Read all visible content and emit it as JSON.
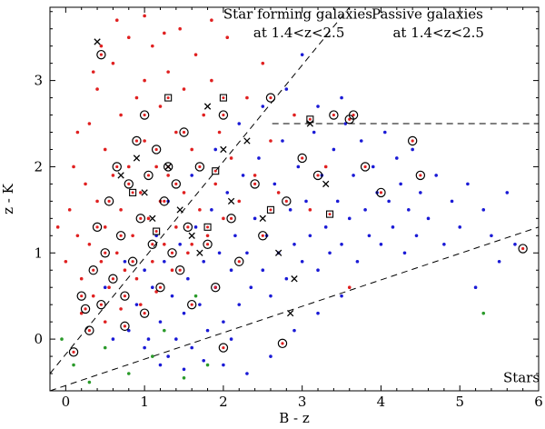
{
  "chart_data": {
    "type": "scatter",
    "title": "",
    "xlabel": "B - z",
    "ylabel": "z - K",
    "xlim": [
      -0.2,
      6.0
    ],
    "ylim": [
      -0.6,
      3.85
    ],
    "xticks": [
      0,
      1,
      2,
      3,
      4,
      5,
      6
    ],
    "yticks": [
      0,
      1,
      2,
      3
    ],
    "grid": false,
    "legend": "none",
    "annotations": [
      {
        "name": "sf-label-1",
        "text": "Star forming galaxies",
        "x": 2.0,
        "y": 3.72
      },
      {
        "name": "sf-label-2",
        "text": "at 1.4<z<2.5",
        "x": 2.38,
        "y": 3.5
      },
      {
        "name": "passive-label-1",
        "text": "Passive galaxies",
        "x": 3.88,
        "y": 3.72
      },
      {
        "name": "passive-label-2",
        "text": "at 1.4<z<2.5",
        "x": 4.15,
        "y": 3.5
      },
      {
        "name": "stars-label",
        "text": "Stars",
        "x": 5.55,
        "y": -0.5
      }
    ],
    "boundary_lines": [
      {
        "name": "sf-boundary",
        "x": [
          -0.2,
          3.6
        ],
        "y": [
          -0.4,
          3.85
        ],
        "style": "dashed"
      },
      {
        "name": "star-boundary",
        "x": [
          -0.2,
          6.0
        ],
        "y": [
          -0.6,
          1.3
        ],
        "style": "dashed"
      },
      {
        "name": "passive-boundary",
        "x": [
          2.62,
          6.0
        ],
        "y": [
          2.5,
          2.5
        ],
        "style": "dashed"
      }
    ],
    "series": [
      {
        "marker": "dot",
        "color": "#e02020",
        "points": [
          [
            -0.1,
            1.3
          ],
          [
            0.0,
            0.9
          ],
          [
            0.05,
            1.5
          ],
          [
            0.1,
            2.0
          ],
          [
            0.15,
            1.2
          ],
          [
            0.2,
            0.7
          ],
          [
            0.25,
            1.8
          ],
          [
            0.3,
            2.5
          ],
          [
            0.3,
            1.1
          ],
          [
            0.35,
            0.5
          ],
          [
            0.4,
            1.6
          ],
          [
            0.4,
            2.9
          ],
          [
            0.45,
            0.9
          ],
          [
            0.5,
            2.2
          ],
          [
            0.5,
            1.3
          ],
          [
            0.55,
            0.6
          ],
          [
            0.6,
            1.9
          ],
          [
            0.6,
            3.2
          ],
          [
            0.65,
            1.0
          ],
          [
            0.7,
            2.6
          ],
          [
            0.7,
            1.5
          ],
          [
            0.75,
            0.8
          ],
          [
            0.8,
            2.0
          ],
          [
            0.8,
            3.5
          ],
          [
            0.85,
            1.2
          ],
          [
            0.9,
            2.8
          ],
          [
            0.9,
            0.7
          ],
          [
            0.95,
            1.7
          ],
          [
            1.0,
            3.0
          ],
          [
            1.0,
            2.3
          ],
          [
            1.05,
            1.4
          ],
          [
            1.1,
            0.9
          ],
          [
            1.1,
            3.4
          ],
          [
            1.15,
            2.0
          ],
          [
            1.2,
            1.6
          ],
          [
            1.2,
            2.7
          ],
          [
            1.25,
            1.1
          ],
          [
            1.3,
            3.1
          ],
          [
            1.3,
            1.9
          ],
          [
            1.35,
            0.8
          ],
          [
            1.4,
            2.4
          ],
          [
            1.4,
            1.3
          ],
          [
            1.45,
            3.6
          ],
          [
            1.5,
            1.7
          ],
          [
            1.5,
            2.9
          ],
          [
            1.55,
            1.0
          ],
          [
            1.6,
            2.2
          ],
          [
            1.65,
            3.3
          ],
          [
            1.7,
            1.5
          ],
          [
            1.75,
            2.6
          ],
          [
            1.8,
            1.2
          ],
          [
            1.85,
            3.0
          ],
          [
            1.9,
            1.8
          ],
          [
            1.95,
            2.4
          ],
          [
            2.0,
            1.4
          ],
          [
            2.1,
            2.1
          ],
          [
            2.2,
            1.6
          ],
          [
            2.3,
            2.8
          ],
          [
            2.4,
            1.9
          ],
          [
            2.6,
            2.3
          ],
          [
            2.7,
            1.7
          ],
          [
            2.9,
            2.6
          ],
          [
            3.1,
            1.5
          ],
          [
            0.2,
            0.3
          ],
          [
            0.5,
            0.2
          ],
          [
            0.15,
            2.4
          ],
          [
            0.35,
            3.1
          ],
          [
            0.65,
            3.7
          ],
          [
            1.0,
            3.75
          ],
          [
            1.25,
            3.55
          ],
          [
            0.95,
            0.4
          ],
          [
            2.5,
            3.2
          ],
          [
            3.3,
            2.0
          ],
          [
            3.6,
            0.6
          ],
          [
            0.45,
            3.4
          ],
          [
            1.85,
            3.7
          ],
          [
            0.7,
            0.35
          ],
          [
            1.6,
            1.1
          ],
          [
            2.05,
            3.5
          ],
          [
            1.15,
            0.55
          ]
        ]
      },
      {
        "marker": "dot",
        "color": "#1a1ad6",
        "points": [
          [
            0.8,
            0.1
          ],
          [
            0.9,
            0.4
          ],
          [
            1.0,
            -0.1
          ],
          [
            1.1,
            0.6
          ],
          [
            1.2,
            0.2
          ],
          [
            1.25,
            0.9
          ],
          [
            1.3,
            -0.2
          ],
          [
            1.35,
            0.5
          ],
          [
            1.4,
            0.0
          ],
          [
            1.45,
            1.1
          ],
          [
            1.5,
            0.3
          ],
          [
            1.55,
            0.7
          ],
          [
            1.6,
            -0.1
          ],
          [
            1.65,
            1.3
          ],
          [
            1.7,
            0.4
          ],
          [
            1.75,
            0.9
          ],
          [
            1.8,
            0.1
          ],
          [
            1.85,
            1.5
          ],
          [
            1.9,
            0.6
          ],
          [
            1.95,
            1.0
          ],
          [
            2.0,
            0.2
          ],
          [
            2.05,
            1.7
          ],
          [
            2.1,
            0.8
          ],
          [
            2.15,
            1.2
          ],
          [
            2.2,
            0.4
          ],
          [
            2.25,
            1.9
          ],
          [
            2.3,
            1.0
          ],
          [
            2.35,
            0.6
          ],
          [
            2.4,
            1.4
          ],
          [
            2.45,
            2.1
          ],
          [
            2.5,
            0.8
          ],
          [
            2.55,
            1.2
          ],
          [
            2.6,
            0.5
          ],
          [
            2.65,
            1.8
          ],
          [
            2.7,
            1.0
          ],
          [
            2.75,
            2.3
          ],
          [
            2.8,
            0.7
          ],
          [
            2.85,
            1.5
          ],
          [
            2.9,
            1.1
          ],
          [
            2.95,
            2.0
          ],
          [
            3.0,
            0.9
          ],
          [
            3.05,
            1.6
          ],
          [
            3.1,
            1.2
          ],
          [
            3.15,
            2.4
          ],
          [
            3.2,
            0.8
          ],
          [
            3.25,
            1.9
          ],
          [
            3.3,
            1.3
          ],
          [
            3.35,
            1.0
          ],
          [
            3.4,
            2.2
          ],
          [
            3.45,
            1.6
          ],
          [
            3.5,
            1.1
          ],
          [
            3.55,
            2.5
          ],
          [
            3.6,
            1.4
          ],
          [
            3.65,
            1.9
          ],
          [
            3.7,
            0.9
          ],
          [
            3.75,
            2.3
          ],
          [
            3.8,
            1.5
          ],
          [
            3.85,
            1.2
          ],
          [
            3.9,
            2.0
          ],
          [
            3.95,
            1.7
          ],
          [
            4.0,
            1.1
          ],
          [
            4.05,
            2.4
          ],
          [
            4.1,
            1.6
          ],
          [
            4.15,
            1.3
          ],
          [
            4.2,
            2.1
          ],
          [
            4.25,
            1.8
          ],
          [
            4.3,
            1.0
          ],
          [
            4.35,
            1.5
          ],
          [
            4.4,
            2.2
          ],
          [
            4.45,
            1.2
          ],
          [
            4.5,
            1.7
          ],
          [
            4.6,
            1.4
          ],
          [
            4.7,
            1.9
          ],
          [
            4.8,
            1.1
          ],
          [
            4.9,
            1.6
          ],
          [
            5.0,
            1.3
          ],
          [
            5.1,
            1.8
          ],
          [
            5.2,
            0.6
          ],
          [
            5.3,
            1.5
          ],
          [
            5.4,
            1.2
          ],
          [
            5.5,
            0.9
          ],
          [
            5.6,
            1.7
          ],
          [
            5.7,
            1.1
          ],
          [
            1.0,
            0.8
          ],
          [
            1.15,
            1.2
          ],
          [
            1.3,
            1.6
          ],
          [
            1.6,
            1.9
          ],
          [
            1.9,
            2.2
          ],
          [
            2.2,
            2.5
          ],
          [
            2.5,
            2.7
          ],
          [
            2.8,
            2.9
          ],
          [
            3.0,
            3.3
          ],
          [
            3.2,
            2.7
          ],
          [
            3.5,
            2.8
          ],
          [
            2.0,
            -0.3
          ],
          [
            2.3,
            -0.4
          ],
          [
            2.6,
            -0.2
          ],
          [
            2.9,
            0.1
          ],
          [
            3.2,
            0.3
          ],
          [
            3.5,
            0.5
          ],
          [
            0.6,
            0.0
          ],
          [
            0.5,
            0.6
          ],
          [
            0.75,
            0.9
          ],
          [
            1.05,
            0.0
          ],
          [
            1.2,
            -0.3
          ],
          [
            1.5,
            -0.35
          ],
          [
            1.75,
            -0.25
          ],
          [
            2.1,
            0.0
          ]
        ]
      },
      {
        "marker": "dot",
        "color": "#2a9a2a",
        "points": [
          [
            -0.05,
            0.0
          ],
          [
            0.1,
            -0.3
          ],
          [
            0.5,
            -0.1
          ],
          [
            0.8,
            -0.4
          ],
          [
            1.1,
            -0.2
          ],
          [
            1.5,
            -0.45
          ],
          [
            1.8,
            -0.3
          ],
          [
            1.65,
            0.5
          ],
          [
            1.25,
            0.1
          ],
          [
            5.3,
            0.3
          ],
          [
            0.3,
            -0.5
          ]
        ]
      },
      {
        "marker": "circle",
        "color": "#000000",
        "points": [
          [
            0.1,
            -0.15
          ],
          [
            0.2,
            0.5
          ],
          [
            0.3,
            0.1
          ],
          [
            0.35,
            0.8
          ],
          [
            0.4,
            1.3
          ],
          [
            0.45,
            0.4
          ],
          [
            0.5,
            1.0
          ],
          [
            0.55,
            1.6
          ],
          [
            0.6,
            0.7
          ],
          [
            0.65,
            2.0
          ],
          [
            0.7,
            1.2
          ],
          [
            0.75,
            0.5
          ],
          [
            0.8,
            1.8
          ],
          [
            0.85,
            0.9
          ],
          [
            0.9,
            2.3
          ],
          [
            0.95,
            1.4
          ],
          [
            1.0,
            0.3
          ],
          [
            1.05,
            1.9
          ],
          [
            1.1,
            1.1
          ],
          [
            1.15,
            2.2
          ],
          [
            1.2,
            0.6
          ],
          [
            1.25,
            1.6
          ],
          [
            1.3,
            2.0
          ],
          [
            1.35,
            1.0
          ],
          [
            1.4,
            1.8
          ],
          [
            1.45,
            0.8
          ],
          [
            1.5,
            2.4
          ],
          [
            1.55,
            1.3
          ],
          [
            1.6,
            0.4
          ],
          [
            1.7,
            2.0
          ],
          [
            1.8,
            1.1
          ],
          [
            1.9,
            0.6
          ],
          [
            2.0,
            2.6
          ],
          [
            2.1,
            1.4
          ],
          [
            2.2,
            0.9
          ],
          [
            2.4,
            1.8
          ],
          [
            2.5,
            1.2
          ],
          [
            2.6,
            2.8
          ],
          [
            2.8,
            1.6
          ],
          [
            3.0,
            2.1
          ],
          [
            3.2,
            1.9
          ],
          [
            3.4,
            2.6
          ],
          [
            3.6,
            2.55
          ],
          [
            3.8,
            2.0
          ],
          [
            4.0,
            1.7
          ],
          [
            4.4,
            2.3
          ],
          [
            4.5,
            1.9
          ],
          [
            5.8,
            1.05
          ],
          [
            2.0,
            -0.1
          ],
          [
            2.75,
            -0.05
          ],
          [
            0.45,
            3.3
          ],
          [
            1.0,
            2.6
          ],
          [
            3.65,
            2.6
          ],
          [
            0.25,
            0.35
          ],
          [
            0.75,
            0.15
          ]
        ]
      },
      {
        "marker": "cross",
        "color": "#000000",
        "points": [
          [
            0.4,
            3.45
          ],
          [
            0.7,
            1.9
          ],
          [
            0.9,
            2.1
          ],
          [
            1.0,
            1.7
          ],
          [
            1.1,
            1.4
          ],
          [
            1.3,
            2.0
          ],
          [
            1.45,
            1.5
          ],
          [
            1.6,
            1.2
          ],
          [
            1.7,
            1.0
          ],
          [
            1.8,
            2.7
          ],
          [
            2.0,
            2.2
          ],
          [
            2.1,
            1.6
          ],
          [
            2.3,
            2.3
          ],
          [
            2.5,
            1.4
          ],
          [
            2.7,
            1.0
          ],
          [
            2.9,
            0.7
          ],
          [
            3.1,
            2.5
          ],
          [
            3.3,
            1.8
          ],
          [
            2.85,
            0.3
          ]
        ]
      },
      {
        "marker": "square",
        "color": "#000000",
        "points": [
          [
            0.85,
            1.7
          ],
          [
            1.3,
            2.8
          ],
          [
            1.8,
            1.3
          ],
          [
            2.0,
            2.8
          ],
          [
            2.6,
            1.5
          ],
          [
            3.1,
            2.55
          ],
          [
            3.35,
            1.45
          ],
          [
            1.15,
            1.25
          ],
          [
            1.9,
            1.95
          ]
        ]
      }
    ]
  }
}
